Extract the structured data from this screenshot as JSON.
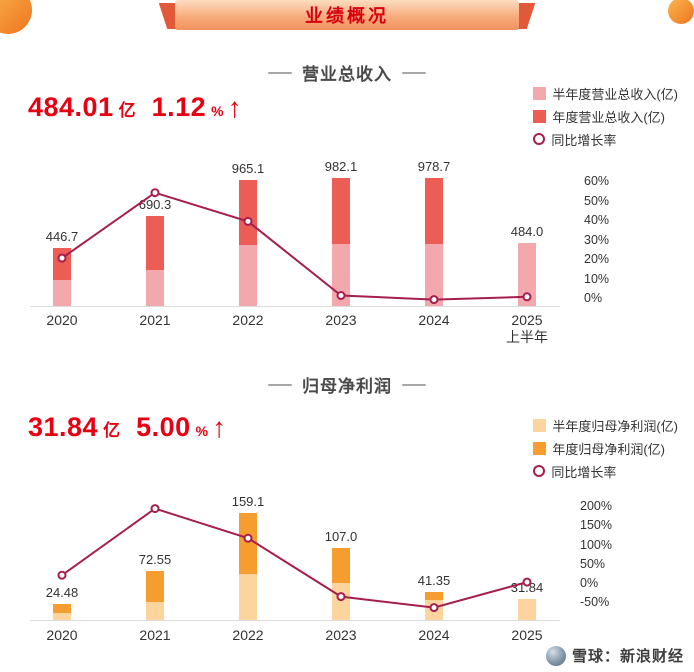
{
  "banner": {
    "title": "业绩概况"
  },
  "colors": {
    "headline_red": "#e60012",
    "growth_line": "#a61e4d",
    "axis_text": "#333333"
  },
  "watermark": {
    "source_label": "雪球：新浪财经"
  },
  "chart_data": [
    {
      "id": "revenue",
      "type": "bar",
      "combo": "stacked-bar+line",
      "section_title": "营业总收入",
      "headline": {
        "value": "484.01",
        "unit": "亿",
        "growth_value": "1.12",
        "growth_unit": "%",
        "direction": "up",
        "arrow": "↑"
      },
      "legend": [
        {
          "label": "半年度营业总收入(亿)",
          "marker": "square",
          "color": "#f2a8ac"
        },
        {
          "label": "年度营业总收入(亿)",
          "marker": "square",
          "color": "#ec5d55"
        },
        {
          "label": "同比增长率",
          "marker": "ring",
          "color": "#a61e4d"
        }
      ],
      "categories": [
        "2020",
        "2021",
        "2022",
        "2023",
        "2024",
        "2025\n上半年"
      ],
      "bar_labels": [
        "446.7",
        "690.3",
        "965.1",
        "982.1",
        "978.7",
        "484.0"
      ],
      "series": [
        {
          "name": "半年度营业总收入(亿)",
          "role": "half",
          "color": "#f2a8ac",
          "values": [
            200,
            280,
            470,
            475,
            475,
            484.0
          ]
        },
        {
          "name": "年度营业总收入(亿)",
          "role": "annual",
          "color": "#ec5d55",
          "values": [
            446.7,
            690.3,
            965.1,
            982.1,
            978.7,
            null
          ]
        },
        {
          "name": "同比增长率",
          "role": "growth_line",
          "color": "#a61e4d",
          "values_pct": [
            21.0,
            54.5,
            39.8,
            1.8,
            -0.3,
            1.12
          ]
        }
      ],
      "y2_axis": {
        "position": "right",
        "min": 0,
        "max": 60,
        "ticks": [
          {
            "label": "60%",
            "pct": 60
          },
          {
            "label": "50%",
            "pct": 50
          },
          {
            "label": "40%",
            "pct": 40
          },
          {
            "label": "30%",
            "pct": 30
          },
          {
            "label": "20%",
            "pct": 20
          },
          {
            "label": "10%",
            "pct": 10
          },
          {
            "label": "0%",
            "pct": 0
          }
        ]
      }
    },
    {
      "id": "profit",
      "type": "bar",
      "combo": "stacked-bar+line",
      "section_title": "归母净利润",
      "headline": {
        "value": "31.84",
        "unit": "亿",
        "growth_value": "5.00",
        "growth_unit": "%",
        "direction": "up",
        "arrow": "↑"
      },
      "legend": [
        {
          "label": "半年度归母净利润(亿)",
          "marker": "square",
          "color": "#fbd49e"
        },
        {
          "label": "年度归母净利润(亿)",
          "marker": "square",
          "color": "#f59e2f"
        },
        {
          "label": "同比增长率",
          "marker": "ring",
          "color": "#a61e4d"
        }
      ],
      "categories": [
        "2020",
        "2021",
        "2022",
        "2023",
        "2024",
        "2025"
      ],
      "bar_labels": [
        "24.48",
        "72.55",
        "159.1",
        "107.0",
        "41.35",
        "31.84"
      ],
      "series": [
        {
          "name": "半年度归母净利润(亿)",
          "role": "half",
          "color": "#fbd49e",
          "values": [
            11,
            27,
            68,
            55,
            30,
            31.84
          ]
        },
        {
          "name": "年度归母净利润(亿)",
          "role": "annual",
          "color": "#f59e2f",
          "values": [
            24.48,
            72.55,
            159.1,
            107.0,
            41.35,
            null
          ]
        },
        {
          "name": "同比增长率",
          "role": "growth_line",
          "color": "#a61e4d",
          "values_pct": [
            23.0,
            196.4,
            119.3,
            -32.7,
            -61.4,
            5.0
          ]
        }
      ],
      "y2_axis": {
        "position": "right",
        "min": -50,
        "max": 200,
        "ticks": [
          {
            "label": "200%",
            "pct": 200
          },
          {
            "label": "150%",
            "pct": 150
          },
          {
            "label": "100%",
            "pct": 100
          },
          {
            "label": "50%",
            "pct": 50
          },
          {
            "label": "0%",
            "pct": 0
          },
          {
            "label": "-50%",
            "pct": -50
          }
        ]
      }
    }
  ]
}
